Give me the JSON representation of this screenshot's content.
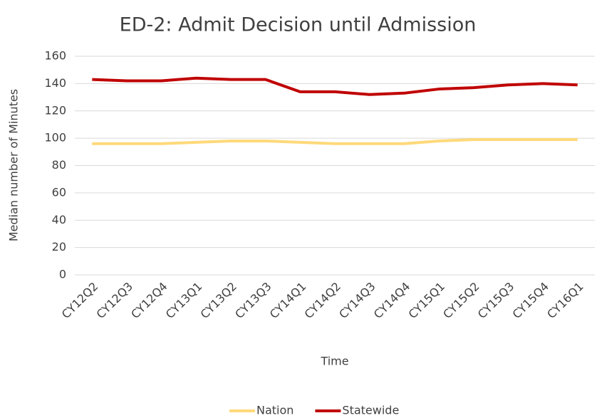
{
  "chart_data": {
    "type": "line",
    "title": "ED-2: Admit Decision until Admission",
    "x_label": "Time",
    "y_label": "Median number of Minutes",
    "categories": [
      "CY12Q2",
      "CY12Q3",
      "CY12Q4",
      "CY13Q1",
      "CY13Q2",
      "CY13Q3",
      "CY14Q1",
      "CY14Q2",
      "CY14Q3",
      "CY14Q4",
      "CY15Q1",
      "CY15Q2",
      "CY15Q3",
      "CY15Q4",
      "CY16Q1"
    ],
    "series": [
      {
        "name": "Nation",
        "color": "#ffd97a",
        "values": [
          96,
          96,
          96,
          97,
          98,
          98,
          97,
          96,
          96,
          96,
          98,
          99,
          99,
          99,
          99
        ]
      },
      {
        "name": "Statewide",
        "color": "#c00000",
        "values": [
          143,
          142,
          142,
          144,
          143,
          143,
          134,
          134,
          132,
          133,
          136,
          137,
          139,
          140,
          139
        ]
      }
    ],
    "ylim": [
      0,
      160
    ],
    "yticks": [
      0,
      20,
      40,
      60,
      80,
      100,
      120,
      140,
      160
    ],
    "grid": true,
    "legend": "bottom"
  }
}
